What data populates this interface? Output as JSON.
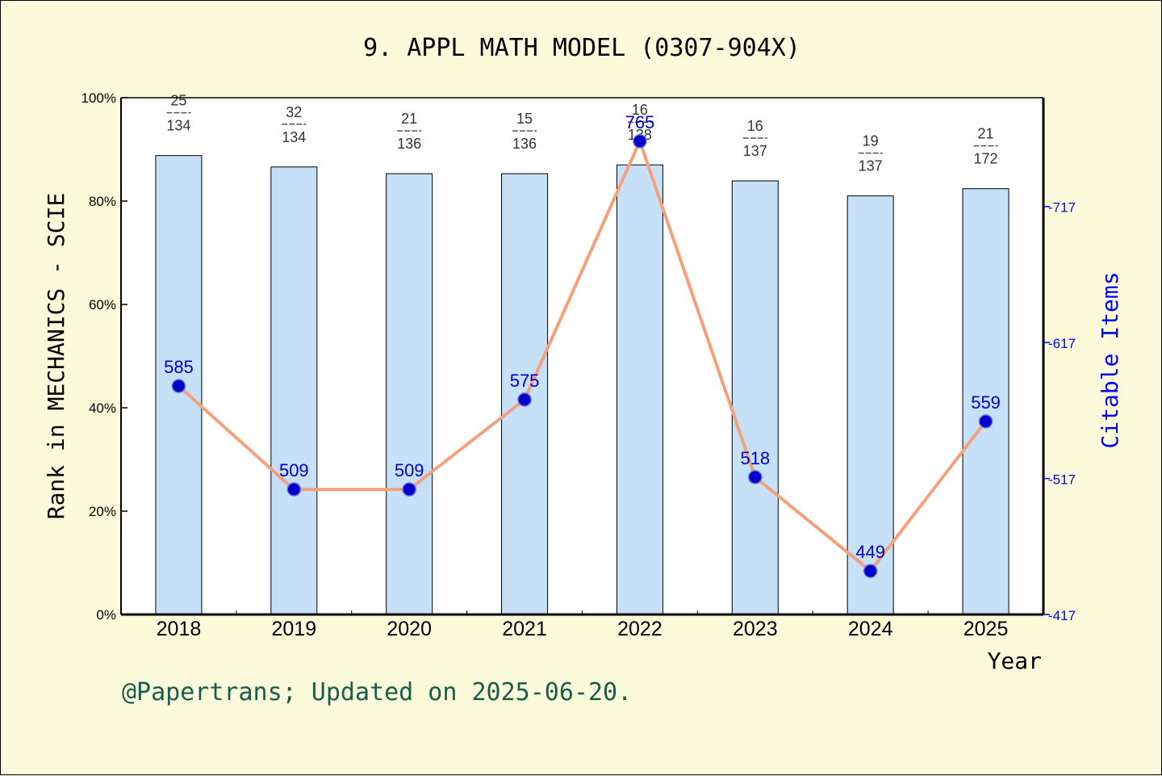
{
  "chart_data": {
    "type": "bar",
    "title": "9. APPL MATH MODEL (0307-904X)",
    "xlabel": "Year",
    "ylabel": "Rank in MECHANICS - SCIE",
    "y2label": "Citable Items",
    "ylim": [
      0,
      100
    ],
    "y2lim": [
      417,
      797
    ],
    "yticks": [
      "0%",
      "20%",
      "40%",
      "60%",
      "80%",
      "100%"
    ],
    "y2ticks": [
      "417",
      "517",
      "617",
      "717"
    ],
    "categories": [
      "2018",
      "2019",
      "2020",
      "2021",
      "2022",
      "2023",
      "2024",
      "2025"
    ],
    "series": [
      {
        "type": "bar",
        "values": [
          88.8,
          86.6,
          85.3,
          85.3,
          87.0,
          83.9,
          81.0,
          82.4
        ],
        "rank": [
          "25",
          "32",
          "21",
          "15",
          "16",
          "16",
          "19",
          "21"
        ],
        "total": [
          "134",
          "134",
          "136",
          "136",
          "138",
          "137",
          "137",
          "172"
        ],
        "color": "#c5e0f7"
      },
      {
        "type": "line",
        "axis": "right",
        "values": [
          585,
          509,
          509,
          575,
          765,
          518,
          449,
          559
        ],
        "color": "#f4a07a"
      }
    ],
    "grid": false
  },
  "footer": "@Papertrans; Updated on 2025-06-20."
}
